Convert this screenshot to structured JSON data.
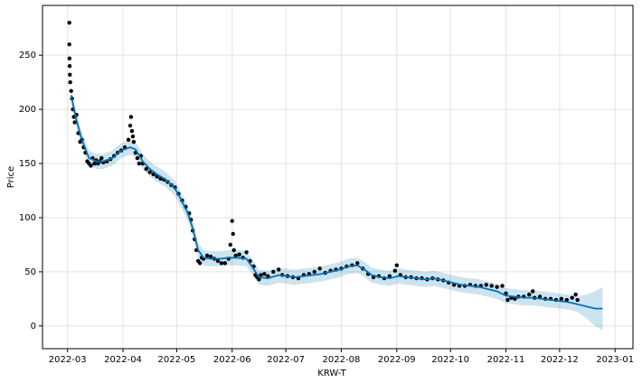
{
  "chart_data": {
    "type": "forecast",
    "xlabel": "KRW-T",
    "ylabel": "Price",
    "xlim": [
      -14,
      316
    ],
    "ylim": [
      -21,
      296
    ],
    "xticks": [
      {
        "value": 0,
        "label": "2022-03"
      },
      {
        "value": 31,
        "label": "2022-04"
      },
      {
        "value": 61,
        "label": "2022-05"
      },
      {
        "value": 92,
        "label": "2022-06"
      },
      {
        "value": 122,
        "label": "2022-07"
      },
      {
        "value": 153,
        "label": "2022-08"
      },
      {
        "value": 184,
        "label": "2022-09"
      },
      {
        "value": 214,
        "label": "2022-10"
      },
      {
        "value": 245,
        "label": "2022-11"
      },
      {
        "value": 275,
        "label": "2022-12"
      },
      {
        "value": 306,
        "label": "2023-01"
      }
    ],
    "yticks": [
      0,
      50,
      100,
      150,
      200,
      250
    ],
    "grid": true,
    "series": [
      {
        "type": "band",
        "color": "#0072B2",
        "x": [
          2,
          5,
          8,
          12,
          16,
          20,
          25,
          30,
          35,
          38,
          42,
          46,
          50,
          55,
          60,
          63,
          67,
          70,
          73,
          76,
          80,
          85,
          90,
          95,
          100,
          103,
          107,
          112,
          118,
          122,
          127,
          132,
          137,
          142,
          147,
          152,
          157,
          162,
          166,
          170,
          175,
          180,
          185,
          190,
          195,
          200,
          205,
          210,
          215,
          220,
          225,
          230,
          235,
          240,
          245,
          250,
          255,
          260,
          265,
          270,
          275,
          280,
          285,
          290,
          295,
          299
        ],
        "lower": [
          206,
          183,
          165,
          148,
          145,
          145,
          148,
          155,
          158,
          156,
          145,
          138,
          133,
          128,
          120,
          111,
          98,
          83,
          63,
          56,
          55,
          55,
          56,
          56,
          55,
          48,
          38,
          37,
          40,
          39,
          38,
          39,
          40,
          41,
          43,
          45,
          48,
          49,
          45,
          40,
          38,
          37,
          39,
          38,
          37,
          36,
          37,
          35,
          33,
          31,
          30,
          29,
          27,
          25,
          21,
          20,
          19,
          19,
          18,
          17,
          16,
          15,
          13,
          7,
          0,
          -4
        ],
        "upper": [
          220,
          197,
          179,
          162,
          159,
          159,
          162,
          169,
          172,
          170,
          159,
          152,
          147,
          142,
          134,
          125,
          112,
          97,
          77,
          70,
          69,
          69,
          70,
          70,
          69,
          62,
          52,
          51,
          54,
          53,
          52,
          53,
          54,
          55,
          57,
          59,
          62,
          63,
          59,
          54,
          52,
          51,
          53,
          52,
          51,
          50,
          51,
          49,
          47,
          45,
          44,
          43,
          41,
          39,
          35,
          34,
          33,
          33,
          32,
          31,
          30,
          29,
          27,
          29,
          32,
          36
        ]
      },
      {
        "type": "scatter",
        "color": "#000000",
        "x": [
          1,
          1,
          1.1,
          1.2,
          1.3,
          1.5,
          2,
          2.5,
          3,
          3.5,
          4,
          5,
          6,
          7,
          8,
          9,
          10,
          11,
          12,
          13,
          14,
          15,
          16,
          17,
          18,
          19,
          20,
          22,
          24,
          26,
          28,
          30,
          32,
          34,
          35,
          35.5,
          36,
          36.5,
          37,
          38,
          39,
          40,
          41,
          42,
          44,
          46,
          48,
          50,
          52,
          54,
          56,
          58,
          60,
          62,
          64,
          66,
          68,
          69,
          70,
          71,
          72,
          73,
          74,
          75,
          76,
          78,
          80,
          82,
          84,
          86,
          88,
          90,
          91,
          92,
          92.5,
          93,
          94,
          96,
          98,
          100,
          102,
          104,
          105,
          106,
          107,
          108,
          110,
          112,
          115,
          118,
          120,
          123,
          126,
          129,
          132,
          135,
          138,
          141,
          144,
          147,
          150,
          153,
          156,
          159,
          162,
          165,
          168,
          171,
          174,
          177,
          180,
          183,
          184,
          186,
          189,
          192,
          195,
          198,
          201,
          204,
          207,
          210,
          213,
          216,
          219,
          222,
          225,
          228,
          231,
          234,
          237,
          240,
          243,
          245,
          246,
          248,
          250,
          252,
          255,
          258,
          260,
          261,
          264,
          267,
          270,
          273,
          276,
          279,
          282,
          284,
          285
        ],
        "values": [
          280,
          260,
          247,
          240,
          232,
          225,
          217,
          210,
          200,
          193,
          188,
          195,
          178,
          170,
          172,
          165,
          160,
          152,
          150,
          148,
          155,
          150,
          153,
          150,
          152,
          155,
          151,
          152,
          154,
          157,
          160,
          162,
          165,
          172,
          185,
          193,
          180,
          175,
          170,
          160,
          155,
          150,
          157,
          150,
          145,
          142,
          140,
          138,
          136,
          135,
          133,
          130,
          128,
          122,
          116,
          110,
          104,
          98,
          88,
          80,
          70,
          60,
          58,
          63,
          62,
          65,
          64,
          62,
          60,
          58,
          58,
          62,
          75,
          97,
          85,
          70,
          65,
          66,
          63,
          68,
          60,
          55,
          47,
          45,
          43,
          47,
          48,
          46,
          50,
          52,
          47,
          46,
          45,
          44,
          47,
          48,
          50,
          53,
          49,
          51,
          52,
          53,
          55,
          56,
          58,
          53,
          48,
          45,
          46,
          44,
          46,
          51,
          56,
          47,
          45,
          45,
          44,
          44,
          43,
          44,
          43,
          42,
          40,
          38,
          37,
          37,
          38,
          37,
          37,
          38,
          37,
          36,
          37,
          30,
          24,
          26,
          25,
          27,
          27,
          29,
          32,
          26,
          27,
          25,
          25,
          24,
          25,
          24,
          26,
          29,
          24
        ]
      },
      {
        "type": "line",
        "color": "#0072B2",
        "x": [
          2,
          5,
          8,
          12,
          16,
          20,
          25,
          30,
          35,
          38,
          42,
          46,
          50,
          55,
          60,
          63,
          67,
          70,
          73,
          76,
          80,
          85,
          90,
          95,
          100,
          103,
          107,
          112,
          118,
          122,
          127,
          132,
          137,
          142,
          147,
          152,
          157,
          162,
          166,
          170,
          175,
          180,
          185,
          190,
          195,
          200,
          205,
          210,
          215,
          220,
          225,
          230,
          235,
          240,
          245,
          250,
          255,
          260,
          265,
          270,
          275,
          280,
          285,
          290,
          295,
          299
        ],
        "values": [
          213,
          190,
          172,
          155,
          152,
          152,
          155,
          162,
          165,
          163,
          152,
          145,
          140,
          135,
          127,
          118,
          105,
          90,
          70,
          63,
          62,
          62,
          63,
          63,
          62,
          55,
          45,
          44,
          47,
          46,
          45,
          46,
          47,
          48,
          50,
          52,
          55,
          56,
          52,
          47,
          45,
          44,
          46,
          45,
          44,
          43,
          44,
          42,
          40,
          38,
          37,
          36,
          34,
          32,
          28,
          27,
          26,
          26,
          25,
          24,
          23,
          22,
          20,
          18,
          16,
          16
        ]
      }
    ]
  }
}
